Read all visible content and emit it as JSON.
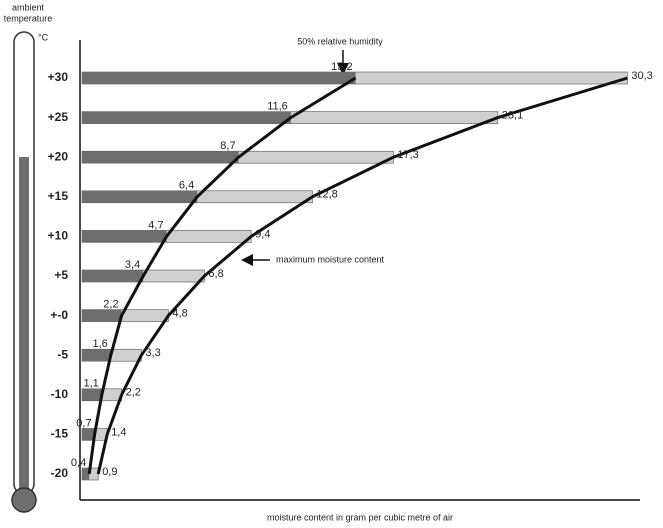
{
  "heading": [
    "ambient",
    "temperature"
  ],
  "unit": "°C",
  "chart_data": {
    "type": "bar",
    "x_label": "moisture content in gram per cubic metre of air",
    "categories": [
      "+30",
      "+25",
      "+20",
      "+15",
      "+10",
      "+5",
      "+-0",
      "-5",
      "-10",
      "-15",
      "-20"
    ],
    "series": [
      {
        "name": "50% relative humidity",
        "color": "#6e6e6e",
        "values": [
          15.2,
          11.6,
          8.7,
          6.4,
          4.7,
          3.4,
          2.2,
          1.6,
          1.1,
          0.7,
          0.4
        ],
        "value_labels": [
          "15,2",
          "11,6",
          "8,7",
          "6,4",
          "4,7",
          "3,4",
          "2,2",
          "1,6",
          "1,1",
          "0,7",
          "0,4"
        ]
      },
      {
        "name": "maximum moisture content",
        "color": "#cfcfcf",
        "values": [
          30.3,
          23.1,
          17.3,
          12.8,
          9.4,
          6.8,
          4.8,
          3.3,
          2.2,
          1.4,
          0.9
        ],
        "value_labels": [
          "30,3",
          "23,1",
          "17,3",
          "12,8",
          "9,4",
          "6,8",
          "4,8",
          "3,3",
          "2,2",
          "1,4",
          "0,9"
        ]
      }
    ],
    "xlim": [
      0,
      31
    ],
    "curve_color": "#111111"
  }
}
